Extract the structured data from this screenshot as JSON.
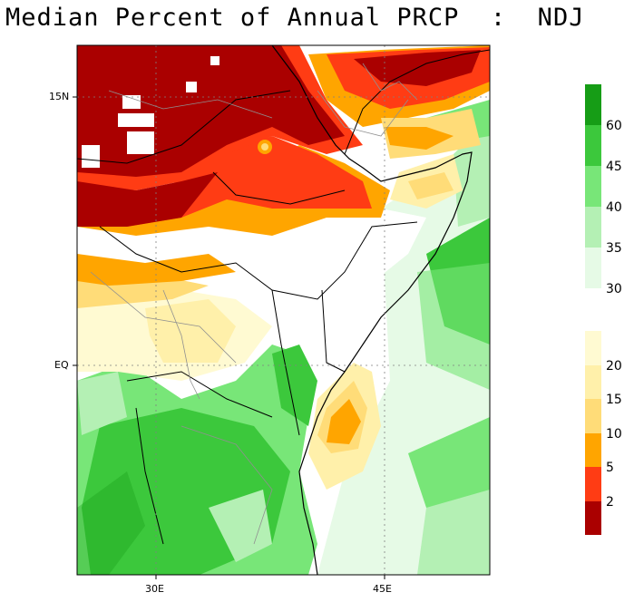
{
  "title": "Median Percent of Annual PRCP  :  NDJ",
  "axes": {
    "lat_labels": [
      "15N",
      "EQ"
    ],
    "lon_labels": [
      "30E",
      "45E"
    ]
  },
  "legend": {
    "upper": [
      {
        "label": "60",
        "color": "#169d16"
      },
      {
        "label": "45",
        "color": "#3cc83c"
      },
      {
        "label": "40",
        "color": "#78e678"
      },
      {
        "label": "35",
        "color": "#b4f0b4"
      },
      {
        "label": "30",
        "color": "#e6fae6"
      }
    ],
    "lower": [
      {
        "label": "20",
        "color": "#fffad2"
      },
      {
        "label": "15",
        "color": "#fff0aa"
      },
      {
        "label": "10",
        "color": "#ffdc78"
      },
      {
        "label": "5",
        "color": "#ffa500"
      },
      {
        "label": "2",
        "color": "#ff3c14"
      },
      {
        "label": "",
        "color": "#aa0000"
      }
    ]
  },
  "colors": {
    "dark_red": "#aa0000",
    "red": "#ff3c14",
    "orange": "#ffa500",
    "light_orange": "#ffdc78",
    "pale_yellow": "#fff0aa",
    "cream": "#fffad2",
    "white": "#ffffff",
    "pale_green": "#e6fae6",
    "light_green": "#b4f0b4",
    "mid_green": "#78e678",
    "green": "#3cc83c",
    "dark_green": "#169d16",
    "border": "#909090",
    "coast": "#000000"
  }
}
